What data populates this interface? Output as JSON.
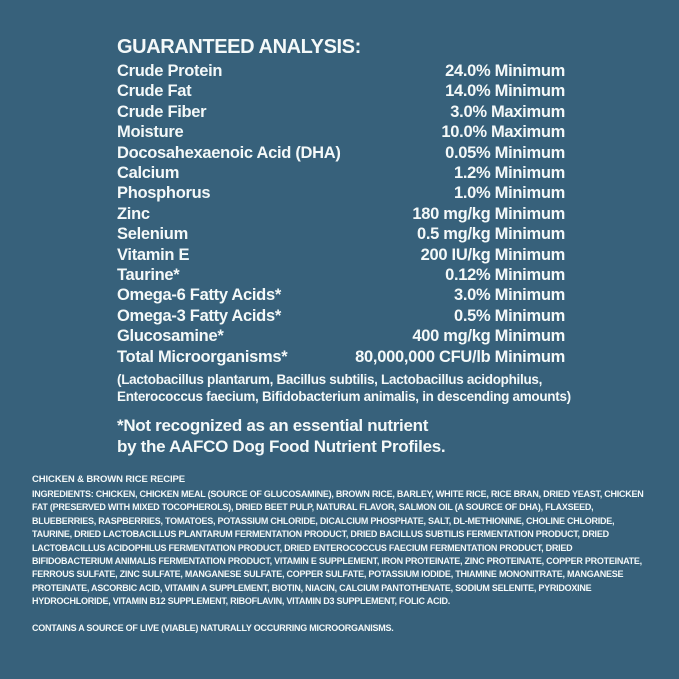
{
  "page": {
    "background_color": "#37617B",
    "text_color": "#F4F9F9"
  },
  "guaranteed_analysis": {
    "heading": "GUARANTEED ANALYSIS:",
    "rows": [
      {
        "label": "Crude Protein",
        "value": "24.0% Minimum"
      },
      {
        "label": "Crude Fat",
        "value": "14.0% Minimum"
      },
      {
        "label": "Crude Fiber",
        "value": "3.0% Maximum"
      },
      {
        "label": "Moisture",
        "value": "10.0% Maximum"
      },
      {
        "label": "Docosahexaenoic Acid (DHA)",
        "value": "0.05% Minimum"
      },
      {
        "label": "Calcium",
        "value": "1.2% Minimum"
      },
      {
        "label": "Phosphorus",
        "value": "1.0% Minimum"
      },
      {
        "label": "Zinc",
        "value": "180 mg/kg Minimum"
      },
      {
        "label": "Selenium",
        "value": "0.5 mg/kg Minimum"
      },
      {
        "label": "Vitamin E",
        "value": "200 IU/kg Minimum"
      },
      {
        "label": "Taurine*",
        "value": "0.12% Minimum"
      },
      {
        "label": "Omega-6 Fatty Acids*",
        "value": "3.0% Minimum"
      },
      {
        "label": "Omega-3 Fatty Acids*",
        "value": "0.5% Minimum"
      },
      {
        "label": "Glucosamine*",
        "value": "400 mg/kg Minimum"
      },
      {
        "label": "Total Microorganisms*",
        "value": "80,000,000 CFU/lb Minimum"
      }
    ],
    "microorganisms_note": "(Lactobacillus plantarum, Bacillus subtilis, Lactobacillus acidophilus,\nEnterococcus faecium, Bifidobacterium animalis, in descending amounts)",
    "footnote": "*Not recognized as an essential nutrient\nby the AAFCO Dog Food Nutrient Profiles."
  },
  "ingredients_section": {
    "recipe_title": "CHICKEN & BROWN RICE RECIPE",
    "ingredients_label": "INGREDIENTS:",
    "ingredients_text": " CHICKEN, CHICKEN MEAL (SOURCE OF GLUCOSAMINE), BROWN RICE, BARLEY, WHITE RICE, RICE BRAN, DRIED YEAST, CHICKEN FAT (PRESERVED WITH MIXED TOCOPHEROLS), DRIED BEET PULP, NATURAL FLAVOR, SALMON OIL (A SOURCE OF DHA), FLAXSEED, BLUEBERRIES, RASPBERRIES, TOMATOES, POTASSIUM CHLORIDE, DICALCIUM PHOSPHATE, SALT, DL-METHIONINE, CHOLINE CHLORIDE, TAURINE, DRIED LACTOBACILLUS PLANTARUM FERMENTATION PRODUCT, DRIED BACILLUS SUBTILIS FERMENTATION PRODUCT, DRIED LACTOBACILLUS ACIDOPHILUS FERMENTATION PRODUCT, DRIED ENTEROCOCCUS FAECIUM FERMENTATION PRODUCT, DRIED BIFIDOBACTERIUM ANIMALIS FERMENTATION PRODUCT, VITAMIN E SUPPLEMENT, IRON PROTEINATE, ZINC PROTEINATE, COPPER PROTEINATE, FERROUS SULFATE, ZINC SULFATE, MANGANESE SULFATE, COPPER SULFATE, POTASSIUM IODIDE, THIAMINE MONONITRATE, MANGANESE PROTEINATE, ASCORBIC ACID, VITAMIN A SUPPLEMENT, BIOTIN, NIACIN, CALCIUM PANTOTHENATE, SODIUM SELENITE, PYRIDOXINE HYDROCHLORIDE, VITAMIN B12 SUPPLEMENT, RIBOFLAVIN, VITAMIN D3 SUPPLEMENT, FOLIC ACID.",
    "contains_statement": "CONTAINS A SOURCE OF LIVE (VIABLE) NATURALLY OCCURRING MICROORGANISMS."
  }
}
